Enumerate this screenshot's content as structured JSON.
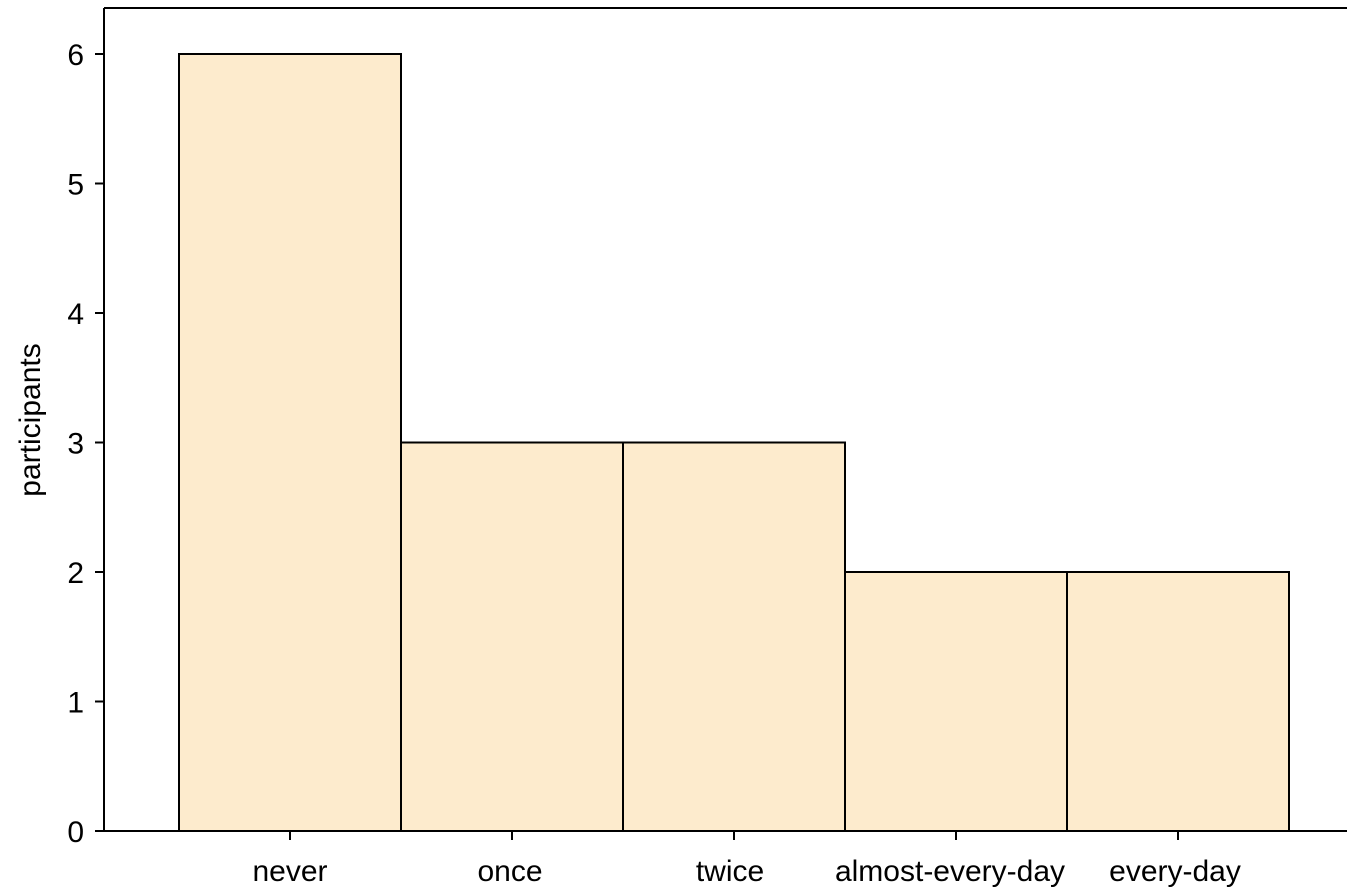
{
  "chart_data": {
    "type": "bar",
    "categories": [
      "never",
      "once",
      "twice",
      "almost-every-day",
      "every-day"
    ],
    "values": [
      6,
      3,
      3,
      2,
      2
    ],
    "title": "",
    "xlabel": "",
    "ylabel": "participants",
    "ylim": [
      0,
      6.4
    ],
    "yticks": [
      0,
      1,
      2,
      3,
      4,
      5,
      6
    ],
    "grid": false,
    "bar_color": "#fdebcd",
    "edge_color": "#000000"
  }
}
